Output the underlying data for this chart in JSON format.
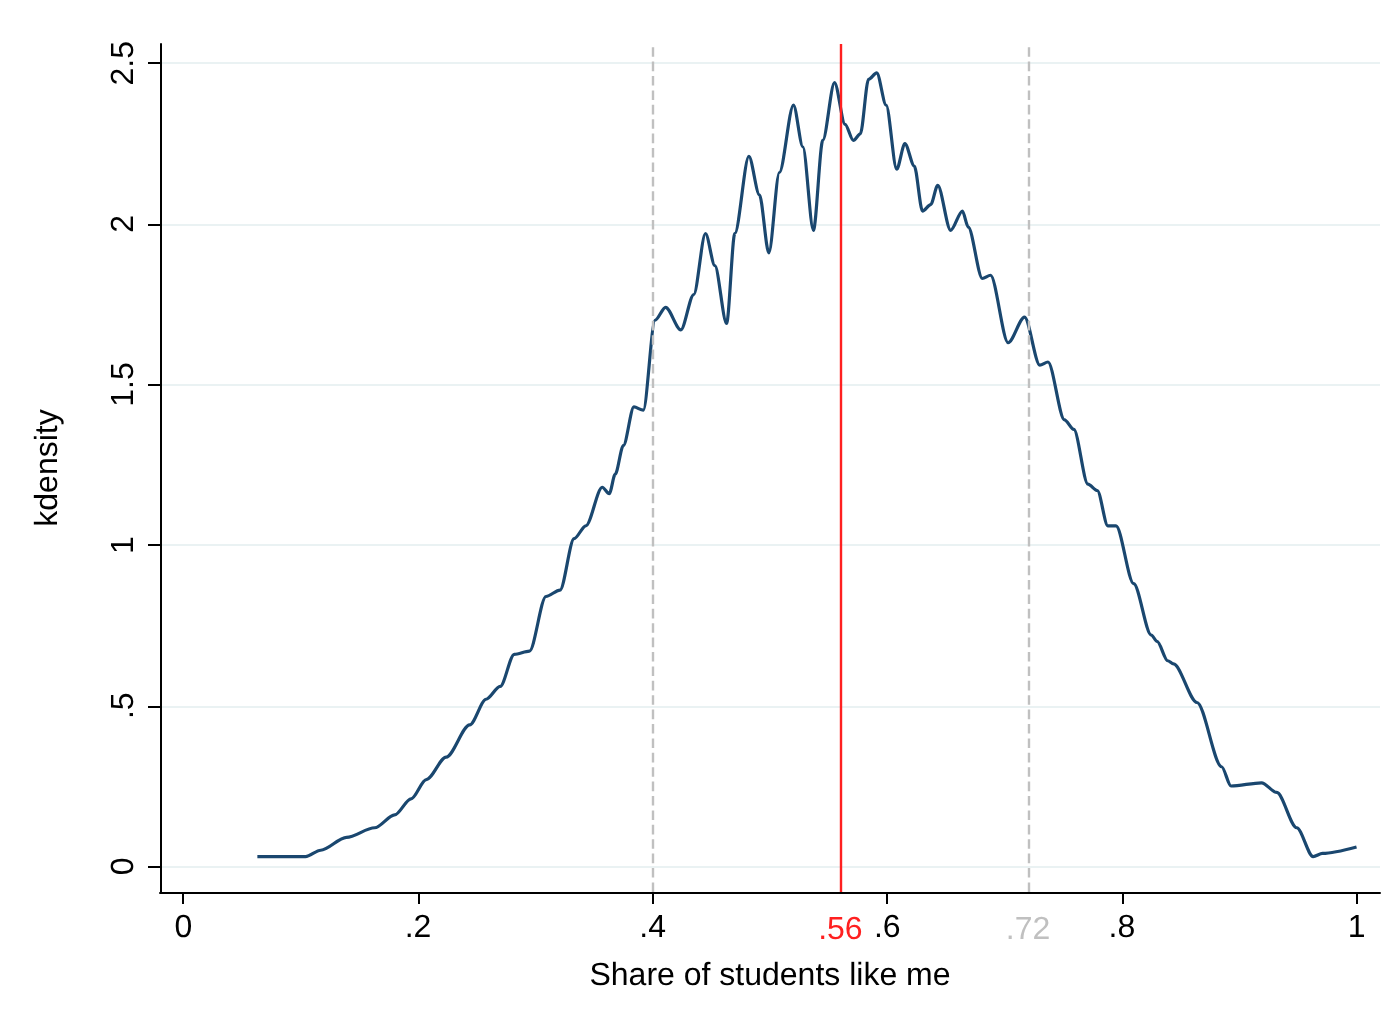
{
  "chart_data": {
    "type": "line",
    "xlabel": "Share of students like me",
    "ylabel": "kdensity",
    "xlim": [
      -0.02,
      1.02
    ],
    "ylim": [
      -0.08,
      2.56
    ],
    "xticks": [
      {
        "value": 0,
        "label": "0"
      },
      {
        "value": 0.2,
        "label": ".2"
      },
      {
        "value": 0.4,
        "label": ".4"
      },
      {
        "value": 0.6,
        "label": ".6"
      },
      {
        "value": 0.8,
        "label": ".8"
      },
      {
        "value": 1,
        "label": "1"
      }
    ],
    "yticks": [
      {
        "value": 0,
        "label": "0"
      },
      {
        "value": 0.5,
        "label": ".5"
      },
      {
        "value": 1,
        "label": "1"
      },
      {
        "value": 1.5,
        "label": "1.5"
      },
      {
        "value": 2,
        "label": "2"
      },
      {
        "value": 2.5,
        "label": "2.5"
      }
    ],
    "grid": "y",
    "marker": "none",
    "line_style": "solid",
    "ref_lines": [
      {
        "axis": "x",
        "value": 0.4,
        "label": null,
        "color": "#c0c0c0",
        "line_style": "dashed"
      },
      {
        "axis": "x",
        "value": 0.56,
        "label": ".56",
        "color": "#ff2020",
        "line_style": "solid"
      },
      {
        "axis": "x",
        "value": 0.72,
        "label": ".72",
        "color": "#c0c0c0",
        "line_style": "dashed"
      }
    ],
    "series": [
      {
        "color": "#1a476f",
        "x": [
          0.063,
          0.104,
          0.117,
          0.139,
          0.163,
          0.18,
          0.194,
          0.207,
          0.224,
          0.244,
          0.258,
          0.27,
          0.282,
          0.295,
          0.309,
          0.321,
          0.333,
          0.343,
          0.357,
          0.363,
          0.368,
          0.375,
          0.384,
          0.392,
          0.402,
          0.411,
          0.424,
          0.435,
          0.445,
          0.453,
          0.463,
          0.47,
          0.482,
          0.491,
          0.499,
          0.508,
          0.52,
          0.528,
          0.537,
          0.545,
          0.555,
          0.564,
          0.571,
          0.577,
          0.584,
          0.591,
          0.599,
          0.608,
          0.615,
          0.623,
          0.63,
          0.637,
          0.643,
          0.654,
          0.664,
          0.669,
          0.681,
          0.688,
          0.703,
          0.717,
          0.73,
          0.737,
          0.751,
          0.759,
          0.771,
          0.779,
          0.788,
          0.795,
          0.81,
          0.825,
          0.83,
          0.839,
          0.844,
          0.864,
          0.885,
          0.893,
          0.919,
          0.932,
          0.949,
          0.963,
          0.971,
          1.0
        ],
        "values": [
          0.03,
          0.03,
          0.05,
          0.09,
          0.12,
          0.16,
          0.21,
          0.27,
          0.34,
          0.44,
          0.52,
          0.56,
          0.66,
          0.67,
          0.84,
          0.86,
          1.02,
          1.06,
          1.18,
          1.16,
          1.22,
          1.31,
          1.43,
          1.42,
          1.7,
          1.74,
          1.67,
          1.78,
          1.97,
          1.87,
          1.69,
          1.97,
          2.21,
          2.09,
          1.91,
          2.16,
          2.37,
          2.24,
          1.98,
          2.26,
          2.44,
          2.31,
          2.26,
          2.28,
          2.45,
          2.47,
          2.37,
          2.17,
          2.25,
          2.18,
          2.04,
          2.06,
          2.12,
          1.98,
          2.04,
          1.99,
          1.83,
          1.84,
          1.63,
          1.71,
          1.56,
          1.57,
          1.39,
          1.36,
          1.19,
          1.17,
          1.06,
          1.06,
          0.88,
          0.72,
          0.7,
          0.64,
          0.63,
          0.51,
          0.31,
          0.25,
          0.26,
          0.23,
          0.12,
          0.03,
          0.04,
          0.06
        ]
      }
    ]
  }
}
